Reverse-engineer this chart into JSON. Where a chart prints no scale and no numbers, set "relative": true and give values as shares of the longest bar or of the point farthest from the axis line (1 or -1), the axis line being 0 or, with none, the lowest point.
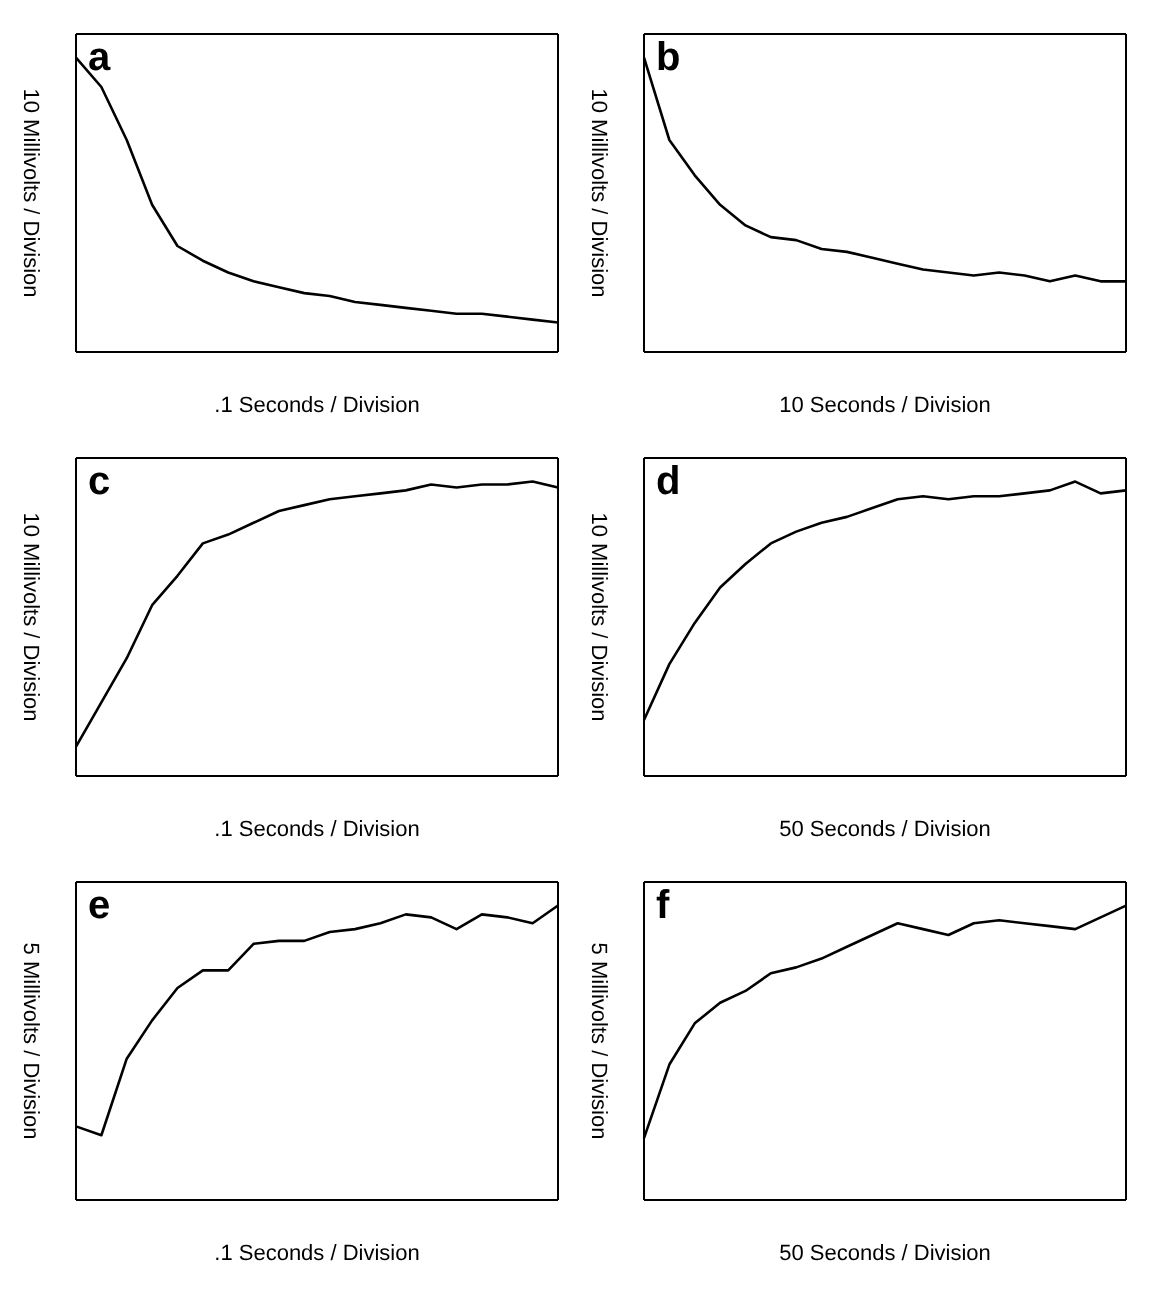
{
  "chart_data": [
    {
      "type": "line",
      "title": "a",
      "ylabel": "10 Millivolts / Division",
      "xlabel": ".1 Seconds / Division",
      "relative": true,
      "tick_labels": false,
      "categories": [
        null,
        null,
        null,
        null,
        null,
        null,
        null,
        null,
        null,
        null,
        null,
        null,
        null,
        null,
        null,
        null,
        null,
        null,
        null,
        null
      ],
      "series": [
        {
          "color": "#000000",
          "values": [
            1.0,
            0.9,
            0.72,
            0.5,
            0.36,
            0.31,
            0.27,
            0.24,
            0.22,
            0.2,
            0.19,
            0.17,
            0.16,
            0.15,
            0.14,
            0.13,
            0.13,
            0.12,
            0.11,
            0.1
          ]
        }
      ]
    },
    {
      "type": "line",
      "title": "b",
      "ylabel": "10 Millivolts / Division",
      "xlabel": "10 Seconds / Division",
      "relative": true,
      "tick_labels": false,
      "categories": [
        null,
        null,
        null,
        null,
        null,
        null,
        null,
        null,
        null,
        null,
        null,
        null,
        null,
        null,
        null,
        null,
        null,
        null,
        null,
        null
      ],
      "series": [
        {
          "color": "#000000",
          "values": [
            1.0,
            0.72,
            0.6,
            0.5,
            0.43,
            0.39,
            0.38,
            0.35,
            0.34,
            0.32,
            0.3,
            0.28,
            0.27,
            0.26,
            0.27,
            0.26,
            0.24,
            0.26,
            0.24,
            0.24
          ]
        }
      ]
    },
    {
      "type": "line",
      "title": "c",
      "ylabel": "10 Millivolts / Division",
      "xlabel": ".1 Seconds / Division",
      "relative": true,
      "tick_labels": false,
      "categories": [
        null,
        null,
        null,
        null,
        null,
        null,
        null,
        null,
        null,
        null,
        null,
        null,
        null,
        null,
        null,
        null,
        null,
        null,
        null,
        null
      ],
      "series": [
        {
          "color": "#000000",
          "values": [
            0.1,
            0.25,
            0.4,
            0.58,
            0.68,
            0.79,
            0.82,
            0.86,
            0.9,
            0.92,
            0.94,
            0.95,
            0.96,
            0.97,
            0.99,
            0.98,
            0.99,
            0.99,
            1.0,
            0.98
          ]
        }
      ]
    },
    {
      "type": "line",
      "title": "d",
      "ylabel": "10 Millivolts / Division",
      "xlabel": "50 Seconds / Division",
      "relative": true,
      "tick_labels": false,
      "categories": [
        null,
        null,
        null,
        null,
        null,
        null,
        null,
        null,
        null,
        null,
        null,
        null,
        null,
        null,
        null,
        null,
        null,
        null,
        null,
        null
      ],
      "series": [
        {
          "color": "#000000",
          "values": [
            0.19,
            0.38,
            0.52,
            0.64,
            0.72,
            0.79,
            0.83,
            0.86,
            0.88,
            0.91,
            0.94,
            0.95,
            0.94,
            0.95,
            0.95,
            0.96,
            0.97,
            1.0,
            0.96,
            0.97
          ]
        }
      ]
    },
    {
      "type": "line",
      "title": "e",
      "ylabel": "5 Millivolts / Division",
      "xlabel": ".1 Seconds / Division",
      "relative": true,
      "tick_labels": false,
      "categories": [
        null,
        null,
        null,
        null,
        null,
        null,
        null,
        null,
        null,
        null,
        null,
        null,
        null,
        null,
        null,
        null,
        null,
        null,
        null,
        null
      ],
      "series": [
        {
          "color": "#000000",
          "values": [
            0.25,
            0.22,
            0.48,
            0.61,
            0.72,
            0.78,
            0.78,
            0.87,
            0.88,
            0.88,
            0.91,
            0.92,
            0.94,
            0.97,
            0.96,
            0.92,
            0.97,
            0.96,
            0.94,
            1.0
          ]
        }
      ]
    },
    {
      "type": "line",
      "title": "f",
      "ylabel": "5 Millivolts / Division",
      "xlabel": "50 Seconds / Division",
      "relative": true,
      "tick_labels": false,
      "categories": [
        null,
        null,
        null,
        null,
        null,
        null,
        null,
        null,
        null,
        null,
        null,
        null,
        null,
        null,
        null,
        null,
        null,
        null,
        null,
        null
      ],
      "series": [
        {
          "color": "#000000",
          "values": [
            0.21,
            0.46,
            0.6,
            0.67,
            0.71,
            0.77,
            0.79,
            0.82,
            0.86,
            0.9,
            0.94,
            0.92,
            0.9,
            0.94,
            0.95,
            0.94,
            0.93,
            0.92,
            0.96,
            1.0
          ]
        }
      ]
    }
  ]
}
